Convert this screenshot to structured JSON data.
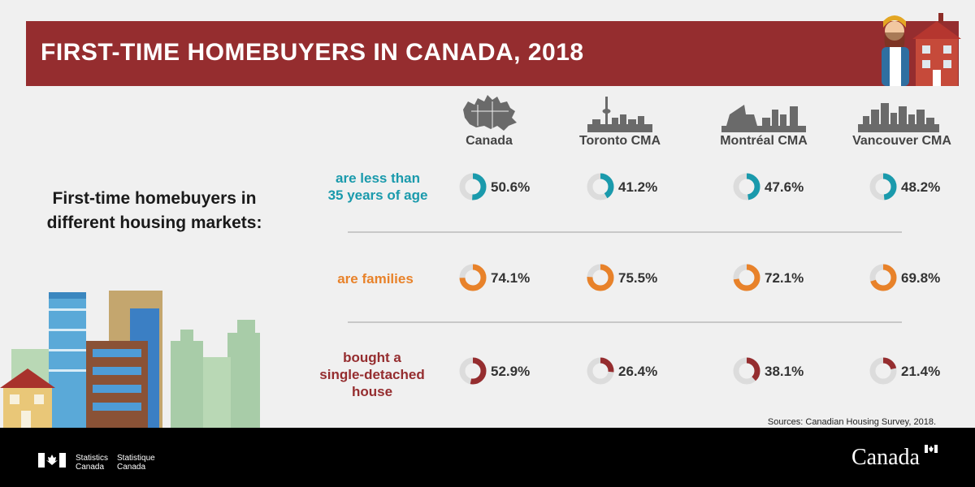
{
  "title": "FIRST-TIME HOMEBUYERS IN CANADA, 2018",
  "lead_text": [
    "First-time homebuyers in",
    "different housing markets:"
  ],
  "source": "Sources: Canadian Housing Survey, 2018.",
  "footer": {
    "statistics_en": [
      "Statistics",
      "Canada"
    ],
    "statistics_fr": [
      "Statistique",
      "Canada"
    ],
    "wordmark": "Canada"
  },
  "colors": {
    "title_bg": "#952d2f",
    "age": "#1a9aac",
    "families": "#e8822a",
    "detached": "#952d2f",
    "ring_track": "#dcdcdc"
  },
  "icons": [
    "canada-map-icon",
    "toronto-skyline-icon",
    "montreal-skyline-icon",
    "vancouver-skyline-icon"
  ],
  "chart_data": {
    "type": "table",
    "categories": [
      "Canada",
      "Toronto CMA",
      "Montréal CMA",
      "Vancouver CMA"
    ],
    "unit": "%",
    "series": [
      {
        "name": "are less than 35 years of age",
        "label_lines": [
          "are less than",
          "35 years of age"
        ],
        "color_key": "age",
        "values": [
          50.6,
          41.2,
          47.6,
          48.2
        ]
      },
      {
        "name": "are families",
        "label_lines": [
          "are families"
        ],
        "color_key": "families",
        "values": [
          74.1,
          75.5,
          72.1,
          69.8
        ]
      },
      {
        "name": "bought a single-detached house",
        "label_lines": [
          "bought a",
          "single-detached",
          "house"
        ],
        "color_key": "detached",
        "values": [
          52.9,
          26.4,
          38.1,
          21.4
        ]
      }
    ]
  }
}
